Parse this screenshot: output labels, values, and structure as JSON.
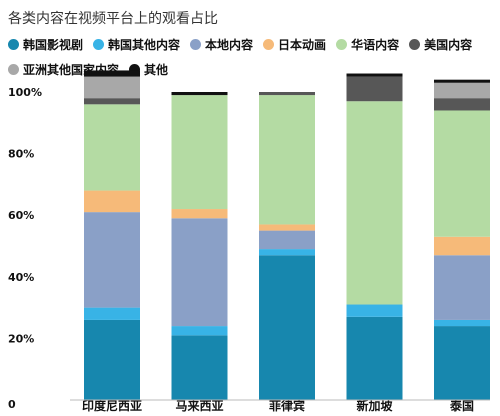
{
  "chart_data": {
    "type": "bar",
    "stacked": true,
    "title": "各类内容在视频平台上的观看占比",
    "categories": [
      "印度尼西亚",
      "马来西亚",
      "菲律宾",
      "新加坡",
      "泰国"
    ],
    "yticks": [
      "0",
      "20%",
      "40%",
      "60%",
      "80%",
      "100%"
    ],
    "ylim": [
      0,
      100
    ],
    "grid": false,
    "legend_position": "top",
    "series": [
      {
        "name": "韩国影视剧",
        "color": "#1787AE",
        "values": [
          26,
          21,
          47,
          27,
          24
        ]
      },
      {
        "name": "韩国其他内容",
        "color": "#38B3E6",
        "values": [
          4,
          3,
          2,
          4,
          2
        ]
      },
      {
        "name": "本地内容",
        "color": "#8AA0C7",
        "values": [
          31,
          35,
          6,
          0,
          21
        ]
      },
      {
        "name": "日本动画",
        "color": "#F6BA79",
        "values": [
          7,
          3,
          2,
          0,
          6
        ]
      },
      {
        "name": "华语内容",
        "color": "#B4DBA3",
        "values": [
          28,
          37,
          42,
          66,
          41
        ]
      },
      {
        "name": "美国内容",
        "color": "#575757",
        "values": [
          2,
          0,
          1,
          8,
          4
        ]
      },
      {
        "name": "亚洲其他国家内容",
        "color": "#A8A8A8",
        "values": [
          7,
          0,
          0,
          0,
          5
        ]
      },
      {
        "name": "其他",
        "color": "#111111",
        "values": [
          2,
          1,
          0,
          1,
          1
        ]
      }
    ]
  }
}
